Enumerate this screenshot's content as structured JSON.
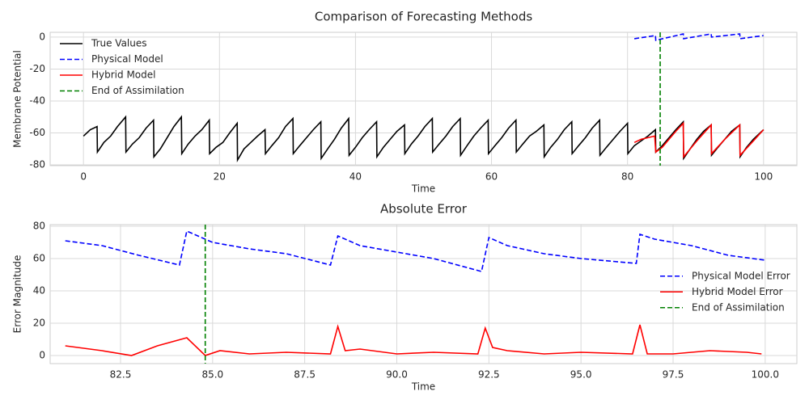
{
  "chart_data": [
    {
      "type": "line",
      "title": "Comparison of Forecasting Methods",
      "xlabel": "Time",
      "ylabel": "Membrane Potential",
      "xlim": [
        -4.9,
        104.9
      ],
      "ylim": [
        -80.5,
        3
      ],
      "xticks": [
        0,
        20,
        40,
        60,
        80,
        100
      ],
      "yticks": [
        -80,
        -60,
        -40,
        -20,
        0
      ],
      "grid": true,
      "legend_loc": "upper left",
      "series": [
        {
          "name": "True Values",
          "color": "#000000",
          "dash": false,
          "x": [
            0,
            1,
            2.0,
            2.05,
            3,
            4,
            5,
            6.2,
            6.25,
            7.2,
            8.2,
            9.2,
            10.3,
            10.35,
            11.3,
            12.3,
            13.3,
            14.4,
            14.45,
            15.4,
            16.4,
            17.4,
            18.5,
            18.55,
            19.5,
            20.5,
            21.5,
            22.6,
            22.65,
            23.6,
            24.6,
            25.6,
            26.7,
            26.75,
            27.7,
            28.7,
            29.7,
            30.8,
            30.85,
            31.8,
            32.8,
            33.8,
            34.9,
            34.95,
            35.9,
            36.9,
            37.9,
            39.0,
            39.05,
            40,
            41,
            42,
            43.1,
            43.15,
            44.1,
            45.1,
            46.1,
            47.2,
            47.25,
            48.2,
            49.2,
            50.2,
            51.3,
            51.35,
            52.3,
            53.3,
            54.3,
            55.4,
            55.45,
            56.4,
            57.4,
            58.4,
            59.5,
            59.55,
            60.5,
            61.5,
            62.5,
            63.6,
            63.65,
            64.6,
            65.6,
            66.6,
            67.7,
            67.75,
            68.7,
            69.7,
            70.7,
            71.8,
            71.85,
            72.8,
            73.8,
            74.8,
            75.9,
            75.95,
            76.9,
            77.9,
            78.9,
            80.0,
            80.05,
            81,
            82,
            83,
            84.1,
            84.15,
            85.1,
            86.1,
            87.1,
            88.2,
            88.25,
            89.2,
            90.2,
            91.2,
            92.3,
            92.35,
            93.3,
            94.3,
            95.3,
            96.5,
            96.55,
            97.5,
            98.5,
            99.5,
            100
          ],
          "values": [
            -62,
            -58,
            -56,
            -72,
            -66,
            -62,
            -56,
            -50,
            -72,
            -67,
            -63,
            -57,
            -52,
            -75,
            -70,
            -63,
            -56,
            -50,
            -73,
            -67,
            -62,
            -58,
            -52,
            -73,
            -69,
            -66,
            -60,
            -54,
            -77,
            -70,
            -66,
            -62,
            -58,
            -73,
            -68,
            -63,
            -56,
            -51,
            -73,
            -68,
            -63,
            -58,
            -53,
            -76,
            -70,
            -64,
            -57,
            -51,
            -74,
            -69,
            -63,
            -58,
            -53,
            -75,
            -69,
            -64,
            -59,
            -55,
            -73,
            -67,
            -62,
            -56,
            -51,
            -72,
            -67,
            -62,
            -56,
            -51,
            -74,
            -68,
            -62,
            -57,
            -52,
            -73,
            -68,
            -63,
            -57,
            -52,
            -72,
            -67,
            -62,
            -59,
            -55,
            -75,
            -69,
            -64,
            -58,
            -53,
            -73,
            -68,
            -63,
            -57,
            -52,
            -74,
            -69,
            -64,
            -59,
            -54,
            -73,
            -68,
            -65,
            -62,
            -58,
            -72,
            -68,
            -63,
            -58,
            -53,
            -76,
            -70,
            -64,
            -59,
            -55,
            -74,
            -69,
            -64,
            -59,
            -55,
            -75,
            -69,
            -64,
            -60,
            -58
          ]
        },
        {
          "name": "Physical Model",
          "color": "#0000ff",
          "dash": true,
          "x": [
            81,
            84.1,
            84.15,
            88.2,
            88.25,
            92.3,
            92.35,
            96.5,
            96.55,
            100
          ],
          "values": [
            -1,
            1,
            -2,
            2,
            -1,
            2,
            0,
            2,
            -1,
            1
          ]
        },
        {
          "name": "Hybrid Model",
          "color": "#ff0000",
          "dash": false,
          "x": [
            81,
            82,
            83,
            84,
            84.15,
            85.1,
            86.1,
            87.1,
            88.2,
            88.25,
            90.2,
            92.3,
            92.35,
            94.3,
            96.5,
            96.55,
            98.5,
            100
          ],
          "values": [
            -66,
            -64,
            -63,
            -62,
            -72,
            -69,
            -64,
            -59,
            -54,
            -75,
            -65,
            -55,
            -73,
            -64,
            -55,
            -74,
            -65,
            -58
          ]
        }
      ],
      "vlines": [
        {
          "name": "End of Assimilation",
          "color": "#008000",
          "x": 84.8
        }
      ]
    },
    {
      "type": "line",
      "title": "Absolute Error",
      "xlabel": "Time",
      "ylabel": "Error Magnitude",
      "xlim": [
        80.59,
        100.86
      ],
      "ylim": [
        -5,
        81
      ],
      "xticks": [
        {
          "value": 82.5,
          "label": "82.5"
        },
        {
          "value": 85,
          "label": "85.0"
        },
        {
          "value": 87.5,
          "label": "87.5"
        },
        {
          "value": 90,
          "label": "90.0"
        },
        {
          "value": 92.5,
          "label": "92.5"
        },
        {
          "value": 95,
          "label": "95.0"
        },
        {
          "value": 97.5,
          "label": "97.5"
        },
        {
          "value": 100,
          "label": "100.0"
        }
      ],
      "yticks": [
        0,
        20,
        40,
        60,
        80
      ],
      "grid": true,
      "legend_loc": "center right",
      "series": [
        {
          "name": "Physical Model Error",
          "color": "#0000ff",
          "dash": true,
          "x": [
            81,
            82,
            83,
            84.1,
            84.3,
            85,
            86,
            87,
            88.2,
            88.4,
            89,
            90,
            91,
            92.3,
            92.5,
            93,
            94,
            95,
            96.5,
            96.6,
            97,
            98,
            99,
            100
          ],
          "values": [
            71,
            68,
            62,
            56,
            77,
            70,
            66,
            63,
            56,
            74,
            68,
            64,
            60,
            52,
            73,
            68,
            63,
            60,
            57,
            75,
            72,
            68,
            62,
            59
          ]
        },
        {
          "name": "Hybrid Model Error",
          "color": "#ff0000",
          "dash": false,
          "x": [
            81,
            82,
            82.8,
            83.5,
            84.3,
            84.8,
            85.2,
            86,
            87,
            88.2,
            88.4,
            88.6,
            89,
            90,
            91,
            92.2,
            92.4,
            92.6,
            93,
            94,
            95,
            96.4,
            96.6,
            96.8,
            97.5,
            98.5,
            99.5,
            99.9
          ],
          "values": [
            6,
            3,
            0,
            6,
            11,
            0,
            3,
            1,
            2,
            1,
            18,
            3,
            4,
            1,
            2,
            1,
            17,
            5,
            3,
            1,
            2,
            1,
            19,
            1,
            1,
            3,
            2,
            1
          ]
        }
      ],
      "vlines": [
        {
          "name": "End of Assimilation",
          "color": "#008000",
          "x": 84.8
        }
      ]
    }
  ]
}
